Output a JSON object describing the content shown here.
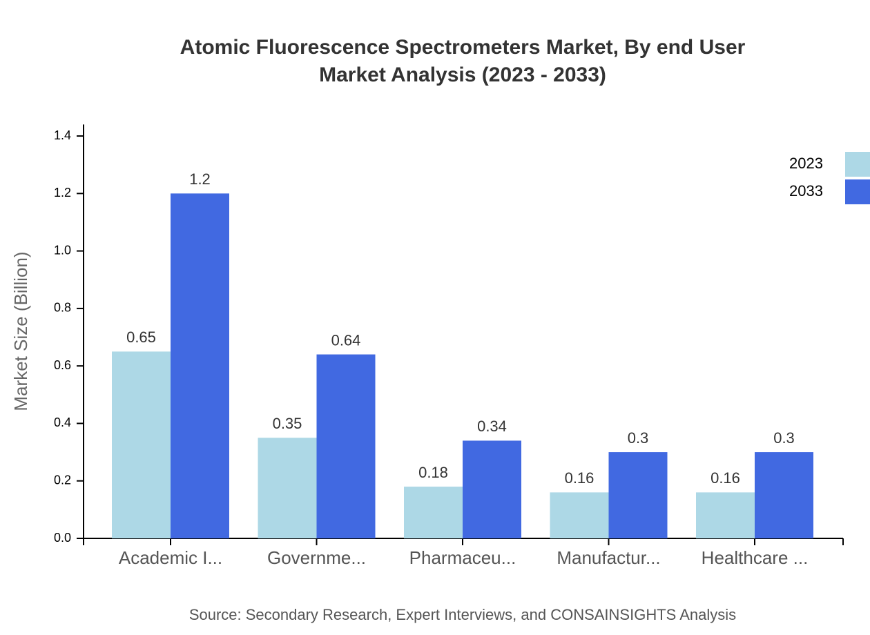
{
  "chart_data": {
    "type": "bar",
    "title": [
      "Atomic Fluorescence Spectrometers Market, By end User",
      "Market Analysis (2023 - 2033)"
    ],
    "y_label": "Market Size (Billion)",
    "categories": [
      "Academic I...",
      "Governme...",
      "Pharmaceu...",
      "Manufactur...",
      "Healthcare ..."
    ],
    "series": [
      {
        "name": "2023",
        "color": "#add8e6",
        "values": [
          0.65,
          0.35,
          0.18,
          0.16,
          0.16
        ]
      },
      {
        "name": "2033",
        "color": "#4169e1",
        "values": [
          1.2,
          0.64,
          0.34,
          0.3,
          0.3
        ]
      }
    ],
    "ylim": [
      0,
      1.44
    ],
    "yticks": [
      {
        "value": 0,
        "label": "0.0"
      },
      0.2,
      0.4,
      0.6,
      0.8,
      {
        "value": 1,
        "label": "1.0"
      },
      1.2,
      1.4
    ],
    "legend": "top-right",
    "source": "Source: Secondary Research, Expert Interviews, and CONSAINSIGHTS Analysis"
  }
}
